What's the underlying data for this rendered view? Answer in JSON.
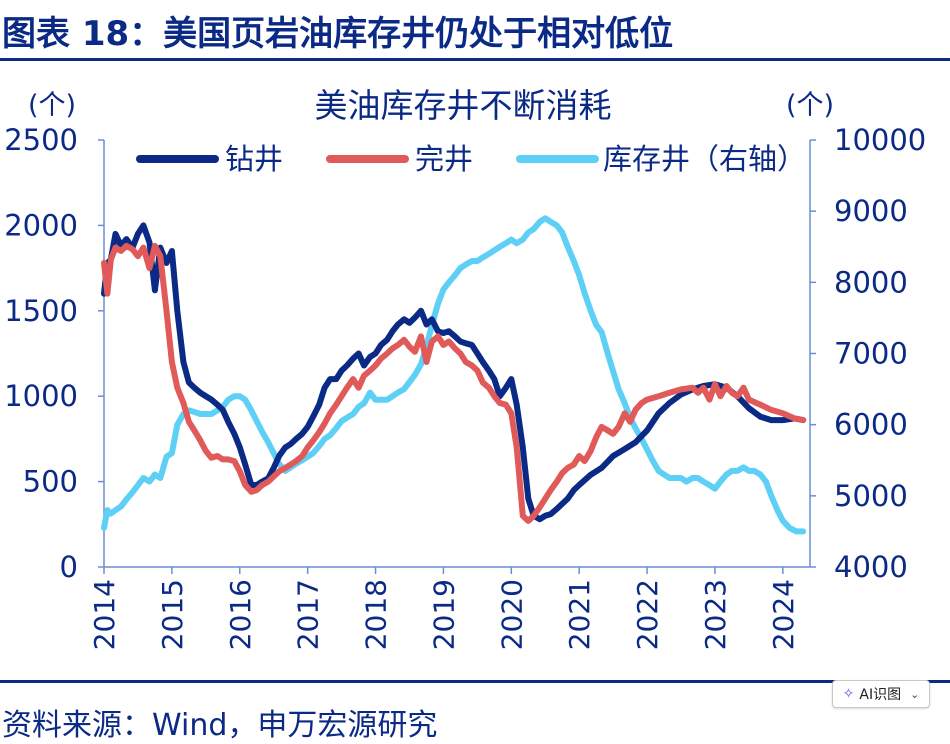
{
  "figure_title": "图表 18：美国页岩油库存井仍处于相对低位",
  "source_note": "资料来源：Wind，申万宏源研究",
  "ai_button": {
    "label": "AI识图",
    "icon": "sparkle-icon",
    "dropdown_icon": "chevron-down-icon"
  },
  "colors": {
    "brand": "#0b2a86",
    "drilled": "#0b2a86",
    "completed": "#e05a5a",
    "duc": "#5fd0f5",
    "axis": "#6a8fd4"
  },
  "chart_data": {
    "type": "line",
    "title": "美油库存井不断消耗",
    "left_unit": "(个)",
    "right_unit": "(个)",
    "ylim_left": [
      0,
      2500
    ],
    "ylim_right": [
      4000,
      10000
    ],
    "y_ticks_left": [
      "0",
      "500",
      "1000",
      "1500",
      "2000",
      "2500"
    ],
    "y_ticks_right": [
      "4000",
      "5000",
      "6000",
      "7000",
      "8000",
      "9000",
      "10000"
    ],
    "x_range": [
      2014.0,
      2024.4
    ],
    "x_ticks": [
      "2014",
      "2015",
      "2016",
      "2017",
      "2018",
      "2019",
      "2020",
      "2021",
      "2022",
      "2023",
      "2024"
    ],
    "grid": false,
    "legend_position": "top",
    "series": [
      {
        "name": "钻井",
        "axis": "left",
        "x": [
          2014.0,
          2014.05,
          2014.1,
          2014.17,
          2014.25,
          2014.33,
          2014.42,
          2014.5,
          2014.58,
          2014.67,
          2014.75,
          2014.83,
          2014.88,
          2014.92,
          2015.0,
          2015.08,
          2015.17,
          2015.25,
          2015.33,
          2015.42,
          2015.5,
          2015.58,
          2015.67,
          2015.75,
          2015.83,
          2015.92,
          2016.0,
          2016.08,
          2016.17,
          2016.25,
          2016.33,
          2016.42,
          2016.5,
          2016.58,
          2016.67,
          2016.75,
          2016.83,
          2016.92,
          2017.0,
          2017.08,
          2017.17,
          2017.25,
          2017.33,
          2017.42,
          2017.5,
          2017.58,
          2017.67,
          2017.75,
          2017.83,
          2017.92,
          2018.0,
          2018.08,
          2018.17,
          2018.25,
          2018.33,
          2018.42,
          2018.5,
          2018.58,
          2018.67,
          2018.75,
          2018.83,
          2018.92,
          2019.0,
          2019.08,
          2019.17,
          2019.25,
          2019.33,
          2019.42,
          2019.5,
          2019.58,
          2019.67,
          2019.75,
          2019.83,
          2019.92,
          2020.0,
          2020.08,
          2020.17,
          2020.25,
          2020.33,
          2020.42,
          2020.5,
          2020.58,
          2020.67,
          2020.75,
          2020.83,
          2020.92,
          2021.0,
          2021.17,
          2021.33,
          2021.5,
          2021.67,
          2021.83,
          2022.0,
          2022.17,
          2022.33,
          2022.5,
          2022.67,
          2022.83,
          2023.0,
          2023.17,
          2023.33,
          2023.5,
          2023.67,
          2023.83,
          2024.0,
          2024.17,
          2024.3
        ],
        "values": [
          1600,
          1780,
          1800,
          1950,
          1880,
          1920,
          1870,
          1950,
          2000,
          1900,
          1620,
          1870,
          1820,
          1780,
          1850,
          1500,
          1200,
          1080,
          1050,
          1020,
          1000,
          980,
          950,
          920,
          850,
          780,
          700,
          600,
          480,
          480,
          500,
          520,
          580,
          650,
          700,
          720,
          750,
          780,
          820,
          880,
          950,
          1050,
          1100,
          1100,
          1150,
          1180,
          1220,
          1250,
          1180,
          1230,
          1250,
          1300,
          1330,
          1380,
          1420,
          1450,
          1430,
          1460,
          1500,
          1420,
          1450,
          1380,
          1370,
          1380,
          1350,
          1320,
          1310,
          1300,
          1250,
          1200,
          1150,
          1100,
          1000,
          1050,
          1100,
          950,
          700,
          400,
          300,
          280,
          300,
          310,
          340,
          370,
          400,
          450,
          480,
          540,
          580,
          650,
          690,
          730,
          800,
          900,
          960,
          1010,
          1040,
          1060,
          1070,
          1050,
          1000,
          930,
          880,
          860,
          860,
          870,
          860
        ]
      },
      {
        "name": "完井",
        "axis": "left",
        "x": [
          2014.0,
          2014.05,
          2014.1,
          2014.17,
          2014.25,
          2014.33,
          2014.42,
          2014.5,
          2014.58,
          2014.67,
          2014.75,
          2014.83,
          2014.92,
          2015.0,
          2015.08,
          2015.17,
          2015.25,
          2015.33,
          2015.42,
          2015.5,
          2015.58,
          2015.67,
          2015.75,
          2015.83,
          2015.92,
          2016.0,
          2016.08,
          2016.17,
          2016.25,
          2016.33,
          2016.42,
          2016.5,
          2016.58,
          2016.67,
          2016.75,
          2016.83,
          2016.92,
          2017.0,
          2017.08,
          2017.17,
          2017.25,
          2017.33,
          2017.42,
          2017.5,
          2017.58,
          2017.67,
          2017.75,
          2017.83,
          2017.92,
          2018.0,
          2018.08,
          2018.17,
          2018.25,
          2018.33,
          2018.42,
          2018.5,
          2018.58,
          2018.67,
          2018.75,
          2018.83,
          2018.92,
          2019.0,
          2019.08,
          2019.17,
          2019.25,
          2019.33,
          2019.42,
          2019.5,
          2019.58,
          2019.67,
          2019.75,
          2019.83,
          2019.92,
          2020.0,
          2020.08,
          2020.17,
          2020.25,
          2020.33,
          2020.42,
          2020.5,
          2020.58,
          2020.67,
          2020.75,
          2020.83,
          2020.92,
          2021.0,
          2021.08,
          2021.17,
          2021.25,
          2021.33,
          2021.42,
          2021.5,
          2021.58,
          2021.67,
          2021.75,
          2021.83,
          2021.92,
          2022.0,
          2022.17,
          2022.33,
          2022.5,
          2022.67,
          2022.75,
          2022.83,
          2022.92,
          2023.0,
          2023.08,
          2023.17,
          2023.25,
          2023.33,
          2023.42,
          2023.5,
          2023.67,
          2023.83,
          2024.0,
          2024.17,
          2024.3
        ],
        "values": [
          1780,
          1600,
          1800,
          1870,
          1850,
          1880,
          1860,
          1820,
          1870,
          1750,
          1880,
          1820,
          1500,
          1200,
          1050,
          960,
          850,
          800,
          740,
          680,
          640,
          650,
          630,
          630,
          620,
          560,
          480,
          440,
          450,
          480,
          500,
          530,
          560,
          580,
          600,
          620,
          650,
          700,
          740,
          790,
          840,
          900,
          950,
          1000,
          1050,
          1100,
          1050,
          1120,
          1150,
          1180,
          1220,
          1250,
          1280,
          1300,
          1330,
          1290,
          1260,
          1350,
          1200,
          1320,
          1350,
          1300,
          1320,
          1280,
          1250,
          1200,
          1180,
          1150,
          1080,
          1050,
          1000,
          960,
          950,
          900,
          700,
          300,
          270,
          300,
          350,
          400,
          450,
          500,
          550,
          580,
          600,
          650,
          620,
          680,
          760,
          820,
          800,
          780,
          820,
          900,
          850,
          920,
          960,
          980,
          1000,
          1020,
          1040,
          1050,
          1020,
          1050,
          980,
          1070,
          1000,
          1060,
          1020,
          1000,
          1050,
          980,
          950,
          920,
          900,
          870,
          860
        ]
      },
      {
        "name": "库存井（右轴）",
        "axis": "right",
        "x": [
          2014.0,
          2014.05,
          2014.1,
          2014.17,
          2014.25,
          2014.33,
          2014.42,
          2014.5,
          2014.58,
          2014.67,
          2014.75,
          2014.83,
          2014.92,
          2015.0,
          2015.08,
          2015.17,
          2015.25,
          2015.33,
          2015.42,
          2015.5,
          2015.58,
          2015.67,
          2015.75,
          2015.83,
          2015.92,
          2016.0,
          2016.08,
          2016.17,
          2016.25,
          2016.33,
          2016.42,
          2016.5,
          2016.58,
          2016.67,
          2016.75,
          2016.83,
          2016.92,
          2017.0,
          2017.08,
          2017.17,
          2017.25,
          2017.33,
          2017.42,
          2017.5,
          2017.58,
          2017.67,
          2017.75,
          2017.83,
          2017.92,
          2018.0,
          2018.08,
          2018.17,
          2018.25,
          2018.33,
          2018.42,
          2018.5,
          2018.58,
          2018.67,
          2018.75,
          2018.83,
          2018.92,
          2019.0,
          2019.08,
          2019.17,
          2019.25,
          2019.33,
          2019.42,
          2019.5,
          2019.58,
          2019.67,
          2019.75,
          2019.83,
          2019.92,
          2020.0,
          2020.08,
          2020.17,
          2020.25,
          2020.33,
          2020.42,
          2020.5,
          2020.58,
          2020.67,
          2020.75,
          2020.83,
          2020.92,
          2021.0,
          2021.08,
          2021.17,
          2021.25,
          2021.33,
          2021.42,
          2021.5,
          2021.58,
          2021.67,
          2021.75,
          2021.83,
          2021.92,
          2022.0,
          2022.08,
          2022.17,
          2022.25,
          2022.33,
          2022.42,
          2022.5,
          2022.58,
          2022.67,
          2022.75,
          2022.83,
          2022.92,
          2023.0,
          2023.08,
          2023.17,
          2023.25,
          2023.33,
          2023.42,
          2023.5,
          2023.58,
          2023.67,
          2023.75,
          2023.83,
          2023.92,
          2024.0,
          2024.1,
          2024.2,
          2024.3
        ],
        "values": [
          4550,
          4800,
          4750,
          4800,
          4850,
          4950,
          5050,
          5150,
          5250,
          5200,
          5300,
          5250,
          5550,
          5600,
          6000,
          6150,
          6200,
          6180,
          6150,
          6150,
          6150,
          6200,
          6250,
          6350,
          6400,
          6400,
          6350,
          6200,
          6050,
          5900,
          5750,
          5600,
          5450,
          5350,
          5400,
          5450,
          5500,
          5550,
          5600,
          5700,
          5800,
          5850,
          5950,
          6050,
          6100,
          6150,
          6250,
          6300,
          6450,
          6350,
          6350,
          6350,
          6400,
          6450,
          6500,
          6600,
          6700,
          6850,
          7100,
          7400,
          7700,
          7900,
          8000,
          8100,
          8200,
          8250,
          8300,
          8300,
          8350,
          8400,
          8450,
          8500,
          8550,
          8600,
          8550,
          8600,
          8700,
          8750,
          8850,
          8900,
          8850,
          8800,
          8700,
          8500,
          8300,
          8100,
          7850,
          7600,
          7400,
          7300,
          7000,
          6750,
          6500,
          6300,
          6100,
          5950,
          5800,
          5650,
          5500,
          5350,
          5300,
          5250,
          5250,
          5250,
          5200,
          5250,
          5250,
          5200,
          5150,
          5100,
          5200,
          5300,
          5350,
          5350,
          5400,
          5350,
          5350,
          5300,
          5200,
          5000,
          4800,
          4650,
          4550,
          4500,
          4500
        ]
      }
    ]
  }
}
